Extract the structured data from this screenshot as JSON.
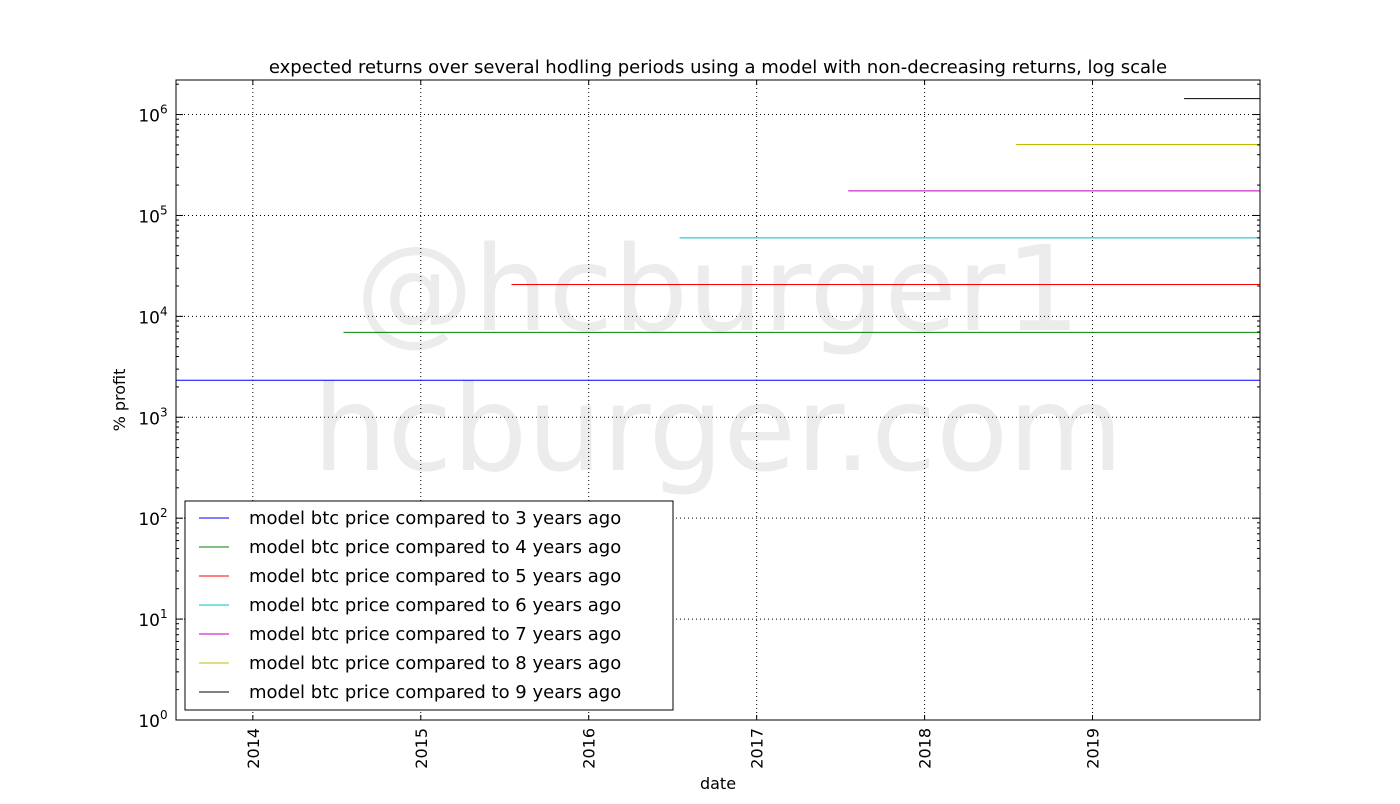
{
  "chart_data": {
    "type": "line",
    "title": "expected returns over several hodling periods using a model with non-decreasing returns, log scale",
    "xlabel": "date",
    "ylabel": "% profit",
    "xlim": [
      "2013-07-18",
      "2019-12-31"
    ],
    "ylim": [
      1,
      2200000
    ],
    "yscale": "log",
    "grid": true,
    "legend_position": "lower-left",
    "x_ticks": [
      "2014",
      "2015",
      "2016",
      "2017",
      "2018",
      "2019"
    ],
    "y_ticks": [
      {
        "base": "10",
        "exp": "0"
      },
      {
        "base": "10",
        "exp": "1"
      },
      {
        "base": "10",
        "exp": "2"
      },
      {
        "base": "10",
        "exp": "3"
      },
      {
        "base": "10",
        "exp": "4"
      },
      {
        "base": "10",
        "exp": "5"
      },
      {
        "base": "10",
        "exp": "6"
      }
    ],
    "series": [
      {
        "name": "model btc price compared to 3 years ago",
        "color": "#0000ff",
        "x": [
          "2013-07-18",
          "2019-12-31"
        ],
        "y": [
          2330,
          2330
        ]
      },
      {
        "name": "model btc price compared to 4 years ago",
        "color": "#008000",
        "x": [
          "2014-07-17",
          "2019-12-31"
        ],
        "y": [
          6950,
          6950
        ]
      },
      {
        "name": "model btc price compared to 5 years ago",
        "color": "#ff0000",
        "x": [
          "2015-07-17",
          "2019-12-31"
        ],
        "y": [
          20700,
          20700
        ]
      },
      {
        "name": "model btc price compared to 6 years ago",
        "color": "#00bfbf",
        "x": [
          "2016-07-17",
          "2019-12-31"
        ],
        "y": [
          60000,
          60000
        ]
      },
      {
        "name": "model btc price compared to 7 years ago",
        "color": "#bf00bf",
        "x": [
          "2017-07-19",
          "2019-12-31"
        ],
        "y": [
          175000,
          175000
        ]
      },
      {
        "name": "model btc price compared to 8 years ago",
        "color": "#bfbf00",
        "x": [
          "2018-07-19",
          "2019-12-31"
        ],
        "y": [
          505000,
          505000
        ]
      },
      {
        "name": "model btc price compared to 9 years ago",
        "color": "#000000",
        "x": [
          "2019-07-19",
          "2019-12-31"
        ],
        "y": [
          1440000,
          1440000
        ]
      }
    ]
  },
  "watermark": {
    "line1": "@hcburger1",
    "line2": "hcburger.com"
  }
}
